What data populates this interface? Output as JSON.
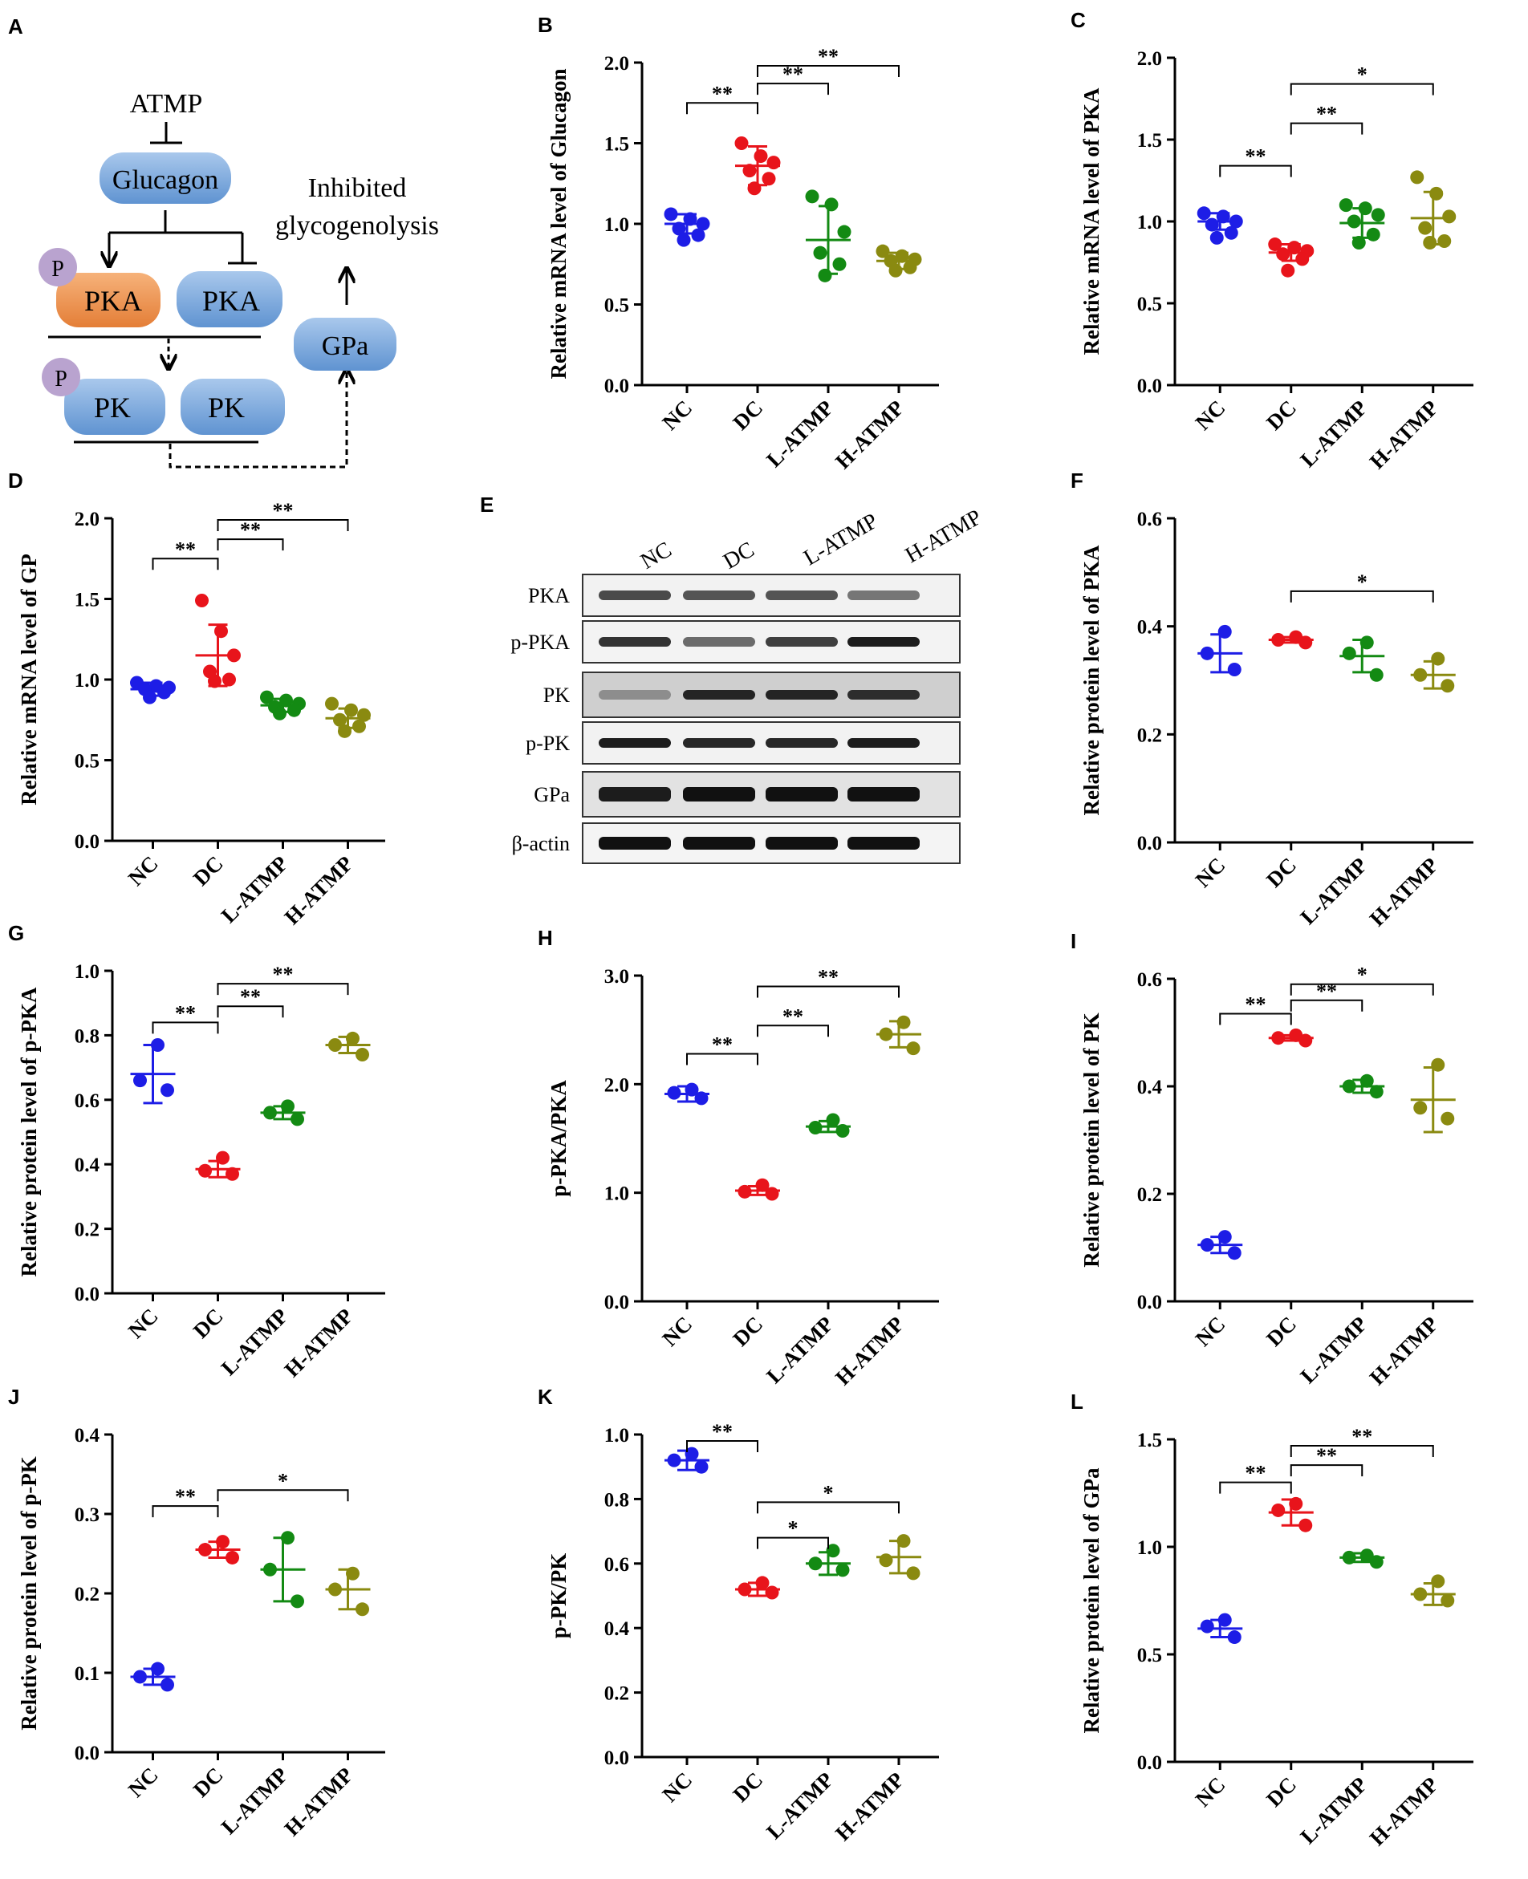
{
  "colors": {
    "NC": "#1d1de6",
    "DC": "#e8141b",
    "L-ATMP": "#138a13",
    "H-ATMP": "#8a8a10",
    "pka_orange": "#ef9a55",
    "box_blue": "#7fadde",
    "p_circle": "#b9a3cf"
  },
  "categories": [
    "NC",
    "DC",
    "L-ATMP",
    "H-ATMP"
  ],
  "panel_a": {
    "letter": "A",
    "atmp": "ATMP",
    "glucagon": "Glucagon",
    "inhibited_line1": "Inhibited",
    "inhibited_line2": "glycogenolysis",
    "pka_active": "PKA",
    "pka_inactive": "PKA",
    "pk_active": "PK",
    "pk_inactive": "PK",
    "gpa": "GPa",
    "p1": "P",
    "p2": "P"
  },
  "panel_e": {
    "letter": "E",
    "lanes": [
      "NC",
      "DC",
      "L-ATMP",
      "H-ATMP"
    ],
    "rows": [
      "PKA",
      "p-PKA",
      "PK",
      "p-PK",
      "GPa",
      "β-actin"
    ]
  },
  "chart_data": [
    {
      "id": "B",
      "letter": "B",
      "type": "scatter",
      "ylabel": "Relative mRNA level of Glucagon",
      "ylim": [
        0,
        2.0
      ],
      "ticks": [
        "0.0",
        "0.5",
        "1.0",
        "1.5",
        "2.0"
      ],
      "tick_values": [
        0,
        0.5,
        1.0,
        1.5,
        2.0
      ],
      "series": [
        {
          "name": "NC",
          "points": [
            1.06,
            1.03,
            1.0,
            0.97,
            0.93,
            0.9
          ],
          "mean": 1.0,
          "sd": 0.06
        },
        {
          "name": "DC",
          "points": [
            1.5,
            1.42,
            1.38,
            1.33,
            1.28,
            1.22
          ],
          "mean": 1.36,
          "sd": 0.12
        },
        {
          "name": "L-ATMP",
          "points": [
            1.17,
            1.12,
            0.95,
            0.82,
            0.75,
            0.68
          ],
          "mean": 0.9,
          "sd": 0.21
        },
        {
          "name": "H-ATMP",
          "points": [
            0.83,
            0.8,
            0.78,
            0.77,
            0.73,
            0.71
          ],
          "mean": 0.77,
          "sd": 0.05
        }
      ],
      "sig": [
        {
          "from": 0,
          "to": 1,
          "label": "**",
          "y": 1.75
        },
        {
          "from": 1,
          "to": 2,
          "label": "**",
          "y": 1.87
        },
        {
          "from": 1,
          "to": 3,
          "label": "**",
          "y": 1.98
        }
      ]
    },
    {
      "id": "C",
      "letter": "C",
      "type": "scatter",
      "ylabel": "Relative mRNA level of PKA",
      "ylim": [
        0,
        2.0
      ],
      "ticks": [
        "0.0",
        "0.5",
        "1.0",
        "1.5",
        "2.0"
      ],
      "tick_values": [
        0,
        0.5,
        1.0,
        1.5,
        2.0
      ],
      "series": [
        {
          "name": "NC",
          "points": [
            1.05,
            1.03,
            1.0,
            0.98,
            0.93,
            0.9
          ],
          "mean": 1.0,
          "sd": 0.05
        },
        {
          "name": "DC",
          "points": [
            0.86,
            0.84,
            0.82,
            0.8,
            0.77,
            0.7
          ],
          "mean": 0.81,
          "sd": 0.05
        },
        {
          "name": "L-ATMP",
          "points": [
            1.1,
            1.08,
            1.04,
            1.0,
            0.92,
            0.87
          ],
          "mean": 0.99,
          "sd": 0.09
        },
        {
          "name": "H-ATMP",
          "points": [
            1.27,
            1.17,
            1.03,
            0.96,
            0.88,
            0.87
          ],
          "mean": 1.02,
          "sd": 0.16
        }
      ],
      "sig": [
        {
          "from": 0,
          "to": 1,
          "label": "**",
          "y": 1.34
        },
        {
          "from": 1,
          "to": 2,
          "label": "**",
          "y": 1.6
        },
        {
          "from": 1,
          "to": 3,
          "label": "*",
          "y": 1.84
        }
      ]
    },
    {
      "id": "D",
      "letter": "D",
      "type": "scatter",
      "ylabel": "Relative mRNA level of GP",
      "ylim": [
        0,
        2.0
      ],
      "ticks": [
        "0.0",
        "0.5",
        "1.0",
        "1.5",
        "2.0"
      ],
      "tick_values": [
        0,
        0.5,
        1.0,
        1.5,
        2.0
      ],
      "series": [
        {
          "name": "NC",
          "points": [
            0.98,
            0.96,
            0.95,
            0.94,
            0.92,
            0.89
          ],
          "mean": 0.94,
          "sd": 0.04
        },
        {
          "name": "DC",
          "points": [
            1.49,
            1.3,
            1.15,
            1.05,
            1.0,
            0.99
          ],
          "mean": 1.15,
          "sd": 0.19
        },
        {
          "name": "L-ATMP",
          "points": [
            0.89,
            0.87,
            0.85,
            0.83,
            0.81,
            0.79
          ],
          "mean": 0.84,
          "sd": 0.04
        },
        {
          "name": "H-ATMP",
          "points": [
            0.85,
            0.81,
            0.78,
            0.75,
            0.71,
            0.68
          ],
          "mean": 0.76,
          "sd": 0.06
        }
      ],
      "sig": [
        {
          "from": 0,
          "to": 1,
          "label": "**",
          "y": 1.75
        },
        {
          "from": 1,
          "to": 2,
          "label": "**",
          "y": 1.87
        },
        {
          "from": 1,
          "to": 3,
          "label": "**",
          "y": 1.99
        }
      ]
    },
    {
      "id": "F",
      "letter": "F",
      "type": "scatter",
      "ylabel": "Relative protein level of PKA",
      "ylim": [
        0,
        0.6
      ],
      "ticks": [
        "0.0",
        "0.2",
        "0.4",
        "0.6"
      ],
      "tick_values": [
        0,
        0.2,
        0.4,
        0.6
      ],
      "series": [
        {
          "name": "NC",
          "points": [
            0.39,
            0.35,
            0.32
          ],
          "mean": 0.35,
          "sd": 0.035
        },
        {
          "name": "DC",
          "points": [
            0.38,
            0.375,
            0.37
          ],
          "mean": 0.375,
          "sd": 0.005
        },
        {
          "name": "L-ATMP",
          "points": [
            0.37,
            0.35,
            0.31
          ],
          "mean": 0.345,
          "sd": 0.03
        },
        {
          "name": "H-ATMP",
          "points": [
            0.34,
            0.31,
            0.29
          ],
          "mean": 0.31,
          "sd": 0.025
        }
      ],
      "sig": [
        {
          "from": 1,
          "to": 3,
          "label": "*",
          "y": 0.465
        }
      ]
    },
    {
      "id": "G",
      "letter": "G",
      "type": "scatter",
      "ylabel": "Relative protein level of p-PKA",
      "ylim": [
        0,
        1.0
      ],
      "ticks": [
        "0.0",
        "0.2",
        "0.4",
        "0.6",
        "0.8",
        "1.0"
      ],
      "tick_values": [
        0,
        0.2,
        0.4,
        0.6,
        0.8,
        1.0
      ],
      "series": [
        {
          "name": "NC",
          "points": [
            0.77,
            0.66,
            0.63
          ],
          "mean": 0.68,
          "sd": 0.09
        },
        {
          "name": "DC",
          "points": [
            0.42,
            0.38,
            0.37
          ],
          "mean": 0.385,
          "sd": 0.025
        },
        {
          "name": "L-ATMP",
          "points": [
            0.58,
            0.56,
            0.54
          ],
          "mean": 0.56,
          "sd": 0.02
        },
        {
          "name": "H-ATMP",
          "points": [
            0.79,
            0.77,
            0.74
          ],
          "mean": 0.77,
          "sd": 0.025
        }
      ],
      "sig": [
        {
          "from": 0,
          "to": 1,
          "label": "**",
          "y": 0.84
        },
        {
          "from": 1,
          "to": 2,
          "label": "**",
          "y": 0.89
        },
        {
          "from": 1,
          "to": 3,
          "label": "**",
          "y": 0.96
        }
      ]
    },
    {
      "id": "H",
      "letter": "H",
      "type": "scatter",
      "ylabel": "p-PKA/PKA",
      "ylim": [
        0,
        3.0
      ],
      "ticks": [
        "0.0",
        "1.0",
        "2.0",
        "3.0"
      ],
      "tick_values": [
        0,
        1.0,
        2.0,
        3.0
      ],
      "series": [
        {
          "name": "NC",
          "points": [
            1.95,
            1.92,
            1.87
          ],
          "mean": 1.91,
          "sd": 0.07
        },
        {
          "name": "DC",
          "points": [
            1.07,
            1.01,
            0.99
          ],
          "mean": 1.02,
          "sd": 0.04
        },
        {
          "name": "L-ATMP",
          "points": [
            1.67,
            1.6,
            1.57
          ],
          "mean": 1.61,
          "sd": 0.05
        },
        {
          "name": "H-ATMP",
          "points": [
            2.57,
            2.46,
            2.33
          ],
          "mean": 2.46,
          "sd": 0.12
        }
      ],
      "sig": [
        {
          "from": 0,
          "to": 1,
          "label": "**",
          "y": 2.28
        },
        {
          "from": 1,
          "to": 2,
          "label": "**",
          "y": 2.54
        },
        {
          "from": 1,
          "to": 3,
          "label": "**",
          "y": 2.9
        }
      ]
    },
    {
      "id": "I",
      "letter": "I",
      "type": "scatter",
      "ylabel": "Relative protein level of PK",
      "ylim": [
        0,
        0.6
      ],
      "ticks": [
        "0.0",
        "0.2",
        "0.4",
        "0.6"
      ],
      "tick_values": [
        0,
        0.2,
        0.4,
        0.6
      ],
      "series": [
        {
          "name": "NC",
          "points": [
            0.12,
            0.105,
            0.09
          ],
          "mean": 0.105,
          "sd": 0.015
        },
        {
          "name": "DC",
          "points": [
            0.495,
            0.49,
            0.485
          ],
          "mean": 0.49,
          "sd": 0.005
        },
        {
          "name": "L-ATMP",
          "points": [
            0.41,
            0.4,
            0.39
          ],
          "mean": 0.4,
          "sd": 0.012
        },
        {
          "name": "H-ATMP",
          "points": [
            0.44,
            0.36,
            0.34
          ],
          "mean": 0.375,
          "sd": 0.06
        }
      ],
      "sig": [
        {
          "from": 0,
          "to": 1,
          "label": "**",
          "y": 0.535
        },
        {
          "from": 1,
          "to": 2,
          "label": "**",
          "y": 0.56
        },
        {
          "from": 1,
          "to": 3,
          "label": "*",
          "y": 0.59
        }
      ]
    },
    {
      "id": "J",
      "letter": "J",
      "type": "scatter",
      "ylabel": "Relative protein level of p-PK",
      "ylim": [
        0,
        0.4
      ],
      "ticks": [
        "0.0",
        "0.1",
        "0.2",
        "0.3",
        "0.4"
      ],
      "tick_values": [
        0,
        0.1,
        0.2,
        0.3,
        0.4
      ],
      "series": [
        {
          "name": "NC",
          "points": [
            0.105,
            0.095,
            0.085
          ],
          "mean": 0.095,
          "sd": 0.01
        },
        {
          "name": "DC",
          "points": [
            0.265,
            0.255,
            0.245
          ],
          "mean": 0.255,
          "sd": 0.01
        },
        {
          "name": "L-ATMP",
          "points": [
            0.27,
            0.23,
            0.19
          ],
          "mean": 0.23,
          "sd": 0.04
        },
        {
          "name": "H-ATMP",
          "points": [
            0.225,
            0.205,
            0.18
          ],
          "mean": 0.205,
          "sd": 0.025
        }
      ],
      "sig": [
        {
          "from": 0,
          "to": 1,
          "label": "**",
          "y": 0.31
        },
        {
          "from": 1,
          "to": 3,
          "label": "*",
          "y": 0.33
        }
      ]
    },
    {
      "id": "K",
      "letter": "K",
      "type": "scatter",
      "ylabel": "p-PK/PK",
      "ylim": [
        0,
        1.0
      ],
      "ticks": [
        "0.0",
        "0.2",
        "0.4",
        "0.6",
        "0.8",
        "1.0"
      ],
      "tick_values": [
        0,
        0.2,
        0.4,
        0.6,
        0.8,
        1.0
      ],
      "series": [
        {
          "name": "NC",
          "points": [
            0.94,
            0.92,
            0.9
          ],
          "mean": 0.92,
          "sd": 0.03
        },
        {
          "name": "DC",
          "points": [
            0.54,
            0.52,
            0.51
          ],
          "mean": 0.52,
          "sd": 0.02
        },
        {
          "name": "L-ATMP",
          "points": [
            0.64,
            0.6,
            0.58
          ],
          "mean": 0.6,
          "sd": 0.035
        },
        {
          "name": "H-ATMP",
          "points": [
            0.67,
            0.61,
            0.57
          ],
          "mean": 0.62,
          "sd": 0.05
        }
      ],
      "sig": [
        {
          "from": 0,
          "to": 1,
          "label": "**",
          "y": 0.98
        },
        {
          "from": 1,
          "to": 2,
          "label": "*",
          "y": 0.68
        },
        {
          "from": 1,
          "to": 3,
          "label": "*",
          "y": 0.79
        }
      ]
    },
    {
      "id": "L",
      "letter": "L",
      "type": "scatter",
      "ylabel": "Relative protein level of GPa",
      "ylim": [
        0,
        1.5
      ],
      "ticks": [
        "0.0",
        "0.5",
        "1.0",
        "1.5"
      ],
      "tick_values": [
        0,
        0.5,
        1.0,
        1.5
      ],
      "series": [
        {
          "name": "NC",
          "points": [
            0.66,
            0.63,
            0.58
          ],
          "mean": 0.62,
          "sd": 0.04
        },
        {
          "name": "DC",
          "points": [
            1.2,
            1.17,
            1.1
          ],
          "mean": 1.16,
          "sd": 0.06
        },
        {
          "name": "L-ATMP",
          "points": [
            0.96,
            0.95,
            0.93
          ],
          "mean": 0.95,
          "sd": 0.02
        },
        {
          "name": "H-ATMP",
          "points": [
            0.84,
            0.78,
            0.75
          ],
          "mean": 0.78,
          "sd": 0.05
        }
      ],
      "sig": [
        {
          "from": 0,
          "to": 1,
          "label": "**",
          "y": 1.3
        },
        {
          "from": 1,
          "to": 2,
          "label": "**",
          "y": 1.38
        },
        {
          "from": 1,
          "to": 3,
          "label": "**",
          "y": 1.47
        }
      ]
    }
  ]
}
